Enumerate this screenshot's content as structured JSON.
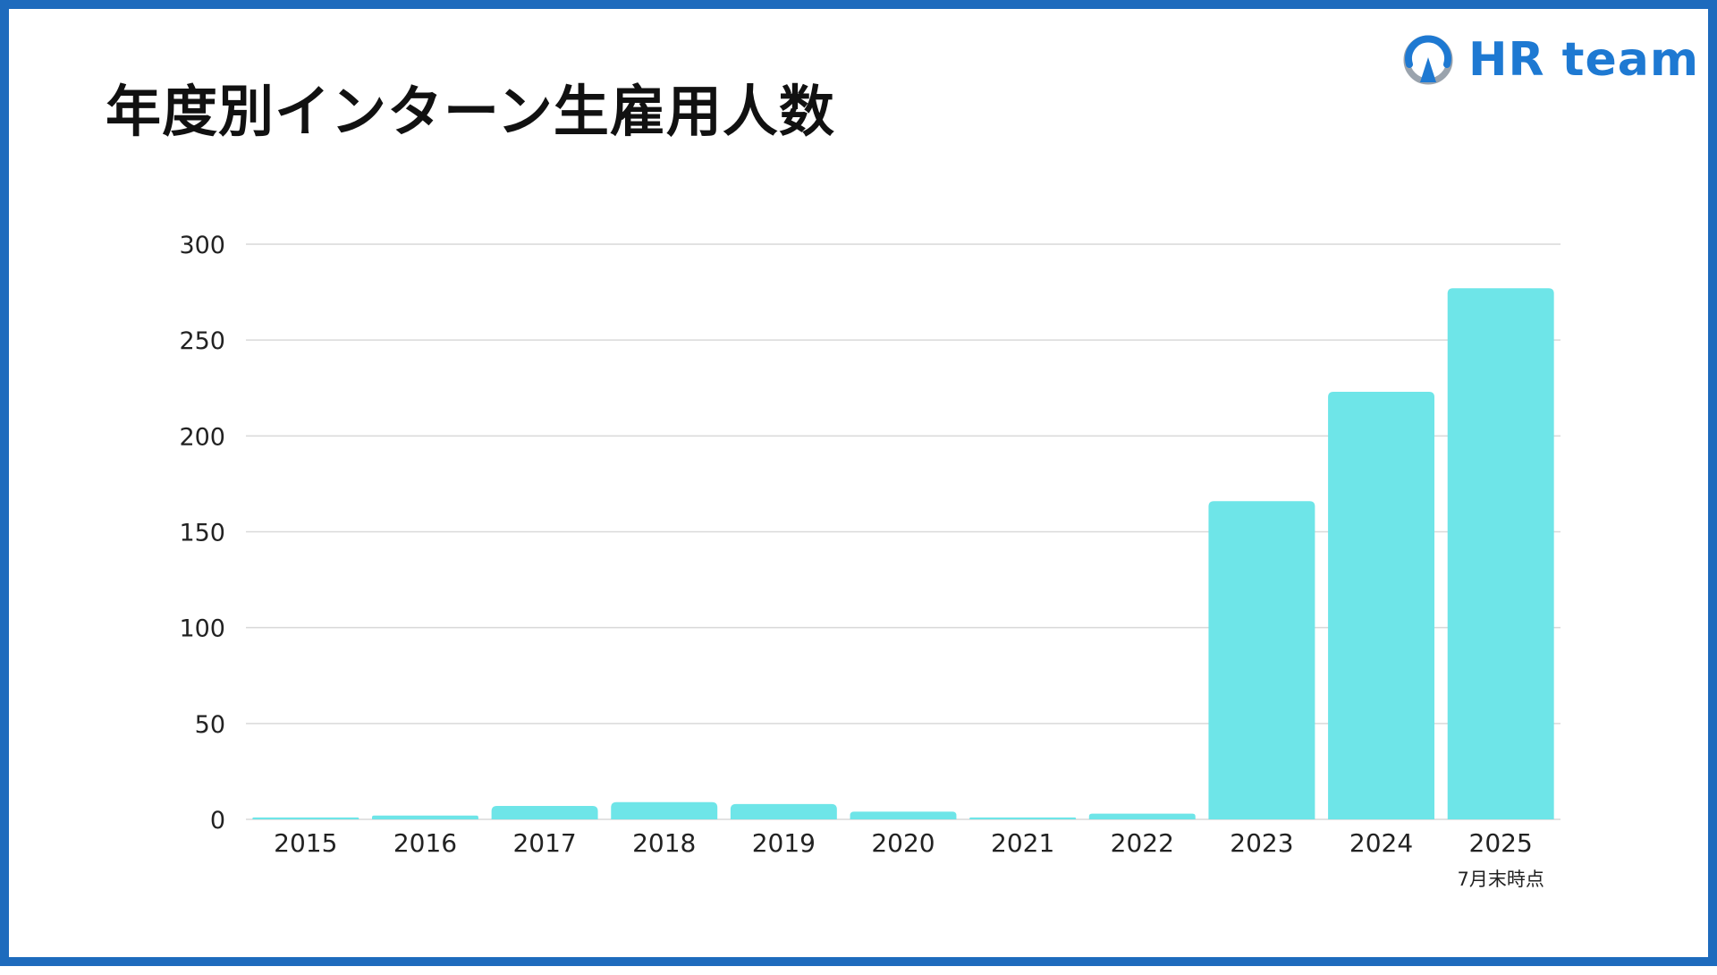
{
  "title": "年度別インターン生雇用人数",
  "logo": {
    "text": "HR team",
    "icon": "compass-ring-icon"
  },
  "colors": {
    "frame": "#1e6bbd",
    "bar": "#6ee5e8",
    "logo": "#1e79d2",
    "grid": "#d9d9d9"
  },
  "chart_data": {
    "type": "bar",
    "title": "",
    "xlabel": "",
    "ylabel": "",
    "categories": [
      "2015",
      "2016",
      "2017",
      "2018",
      "2019",
      "2020",
      "2021",
      "2022",
      "2023",
      "2024",
      "2025"
    ],
    "values": [
      1,
      2,
      7,
      9,
      8,
      4,
      1,
      3,
      166,
      223,
      277
    ],
    "ylim": [
      0,
      300
    ],
    "yticks": [
      0,
      50,
      100,
      150,
      200,
      250,
      300
    ],
    "grid": true,
    "legend": "none",
    "annotations": [
      {
        "category": "2025",
        "text": "7月末時点"
      }
    ]
  }
}
